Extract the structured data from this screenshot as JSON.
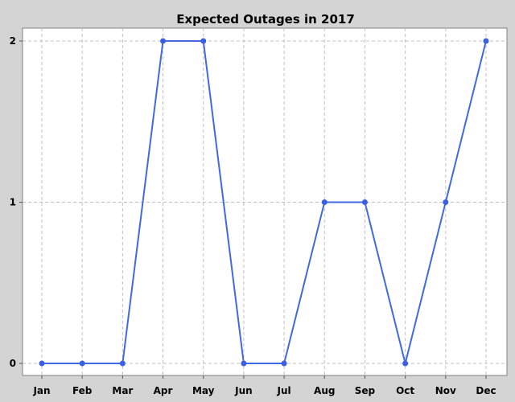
{
  "chart_data": {
    "type": "line",
    "title": "Expected Outages in 2017",
    "xlabel": "",
    "ylabel": "",
    "categories": [
      "Jan",
      "Feb",
      "Mar",
      "Apr",
      "May",
      "Jun",
      "Jul",
      "Aug",
      "Sep",
      "Oct",
      "Nov",
      "Dec"
    ],
    "series": [
      {
        "values": [
          0,
          0,
          0,
          2,
          2,
          0,
          0,
          1,
          1,
          0,
          1,
          2
        ]
      }
    ],
    "ylim": [
      0,
      2
    ],
    "yticks": [
      0,
      1,
      2
    ],
    "grid": true,
    "legend": "none",
    "colors": {
      "line": "#4169e1",
      "point": "#3a5fe0",
      "plot_background": "#ffffff",
      "outer_background": "#d4d4d4",
      "grid": "#c0c0c0"
    }
  }
}
